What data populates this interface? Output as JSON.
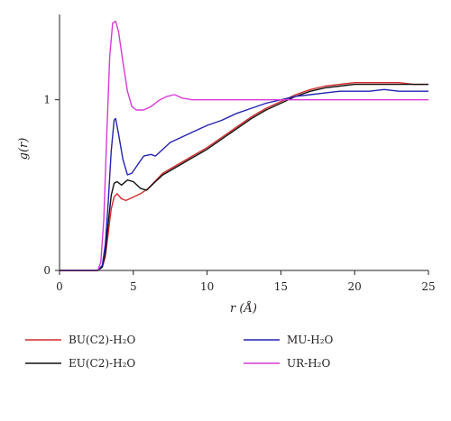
{
  "chart_data": {
    "type": "line",
    "xlabel": "r (Å)",
    "ylabel": "g(r)",
    "xlim": [
      0,
      25
    ],
    "ylim": [
      0,
      1.5
    ],
    "xticks": [
      "0",
      "5",
      "10",
      "15",
      "20",
      "25"
    ],
    "yticks": [
      "0",
      "1"
    ],
    "grid": false,
    "legend_placement": "bottom",
    "series": [
      {
        "name": "BU(C2)-H₂O",
        "color": "#d42a2a",
        "points": [
          [
            0,
            0
          ],
          [
            2.6,
            0
          ],
          [
            2.9,
            0.02
          ],
          [
            3.1,
            0.08
          ],
          [
            3.3,
            0.22
          ],
          [
            3.5,
            0.36
          ],
          [
            3.7,
            0.43
          ],
          [
            3.9,
            0.45
          ],
          [
            4.2,
            0.42
          ],
          [
            4.5,
            0.41
          ],
          [
            5.0,
            0.43
          ],
          [
            5.5,
            0.45
          ],
          [
            6.0,
            0.48
          ],
          [
            7.0,
            0.57
          ],
          [
            8.0,
            0.62
          ],
          [
            9.0,
            0.67
          ],
          [
            10.0,
            0.72
          ],
          [
            11.0,
            0.78
          ],
          [
            12.0,
            0.84
          ],
          [
            13.0,
            0.9
          ],
          [
            14.0,
            0.95
          ],
          [
            15.0,
            0.99
          ],
          [
            16.0,
            1.03
          ],
          [
            17.0,
            1.06
          ],
          [
            18.0,
            1.08
          ],
          [
            19.0,
            1.09
          ],
          [
            20.0,
            1.1
          ],
          [
            21.0,
            1.1
          ],
          [
            22.0,
            1.1
          ],
          [
            23.0,
            1.1
          ],
          [
            24.0,
            1.09
          ],
          [
            25.0,
            1.09
          ]
        ]
      },
      {
        "name": "EU(C2)-H₂O",
        "color": "#111111",
        "points": [
          [
            0,
            0
          ],
          [
            2.6,
            0
          ],
          [
            2.9,
            0.02
          ],
          [
            3.1,
            0.1
          ],
          [
            3.3,
            0.28
          ],
          [
            3.5,
            0.44
          ],
          [
            3.7,
            0.51
          ],
          [
            3.9,
            0.52
          ],
          [
            4.2,
            0.5
          ],
          [
            4.6,
            0.53
          ],
          [
            5.0,
            0.52
          ],
          [
            5.5,
            0.48
          ],
          [
            5.9,
            0.47
          ],
          [
            6.5,
            0.52
          ],
          [
            7.0,
            0.56
          ],
          [
            8.0,
            0.61
          ],
          [
            9.0,
            0.66
          ],
          [
            10.0,
            0.71
          ],
          [
            11.0,
            0.77
          ],
          [
            12.0,
            0.83
          ],
          [
            13.0,
            0.89
          ],
          [
            14.0,
            0.94
          ],
          [
            15.0,
            0.98
          ],
          [
            16.0,
            1.02
          ],
          [
            17.0,
            1.05
          ],
          [
            18.0,
            1.07
          ],
          [
            19.0,
            1.08
          ],
          [
            20.0,
            1.09
          ],
          [
            21.0,
            1.09
          ],
          [
            22.0,
            1.09
          ],
          [
            23.0,
            1.09
          ],
          [
            24.0,
            1.09
          ],
          [
            25.0,
            1.09
          ]
        ]
      },
      {
        "name": "MU-H₂O",
        "color": "#2323b4",
        "points": [
          [
            0,
            0
          ],
          [
            2.6,
            0
          ],
          [
            2.9,
            0.03
          ],
          [
            3.1,
            0.15
          ],
          [
            3.3,
            0.4
          ],
          [
            3.5,
            0.7
          ],
          [
            3.7,
            0.88
          ],
          [
            3.8,
            0.89
          ],
          [
            4.0,
            0.8
          ],
          [
            4.3,
            0.65
          ],
          [
            4.6,
            0.56
          ],
          [
            4.9,
            0.57
          ],
          [
            5.3,
            0.62
          ],
          [
            5.7,
            0.67
          ],
          [
            6.2,
            0.68
          ],
          [
            6.5,
            0.67
          ],
          [
            7.0,
            0.71
          ],
          [
            7.5,
            0.75
          ],
          [
            8.0,
            0.77
          ],
          [
            9.0,
            0.81
          ],
          [
            10.0,
            0.85
          ],
          [
            11.0,
            0.88
          ],
          [
            12.0,
            0.92
          ],
          [
            13.0,
            0.95
          ],
          [
            14.0,
            0.98
          ],
          [
            15.0,
            1.0
          ],
          [
            16.0,
            1.02
          ],
          [
            17.0,
            1.03
          ],
          [
            18.0,
            1.04
          ],
          [
            19.0,
            1.05
          ],
          [
            20.0,
            1.05
          ],
          [
            21.0,
            1.05
          ],
          [
            22.0,
            1.06
          ],
          [
            23.0,
            1.05
          ],
          [
            24.0,
            1.05
          ],
          [
            25.0,
            1.05
          ]
        ]
      },
      {
        "name": "UR-H₂O",
        "color": "#d63ad6",
        "points": [
          [
            0,
            0
          ],
          [
            2.6,
            0
          ],
          [
            2.8,
            0.05
          ],
          [
            3.0,
            0.3
          ],
          [
            3.2,
            0.8
          ],
          [
            3.4,
            1.25
          ],
          [
            3.6,
            1.45
          ],
          [
            3.8,
            1.46
          ],
          [
            4.0,
            1.4
          ],
          [
            4.3,
            1.22
          ],
          [
            4.6,
            1.05
          ],
          [
            4.9,
            0.96
          ],
          [
            5.2,
            0.94
          ],
          [
            5.7,
            0.94
          ],
          [
            6.2,
            0.96
          ],
          [
            6.8,
            1.0
          ],
          [
            7.3,
            1.02
          ],
          [
            7.8,
            1.03
          ],
          [
            8.3,
            1.01
          ],
          [
            9.0,
            1.0
          ],
          [
            10.0,
            1.0
          ],
          [
            11.0,
            1.0
          ],
          [
            12.0,
            1.0
          ],
          [
            13.0,
            1.0
          ],
          [
            14.0,
            1.0
          ],
          [
            15.0,
            1.0
          ],
          [
            16.0,
            1.0
          ],
          [
            18.0,
            1.0
          ],
          [
            20.0,
            1.0
          ],
          [
            22.0,
            1.0
          ],
          [
            24.0,
            1.0
          ],
          [
            25.0,
            1.0
          ]
        ]
      }
    ]
  }
}
